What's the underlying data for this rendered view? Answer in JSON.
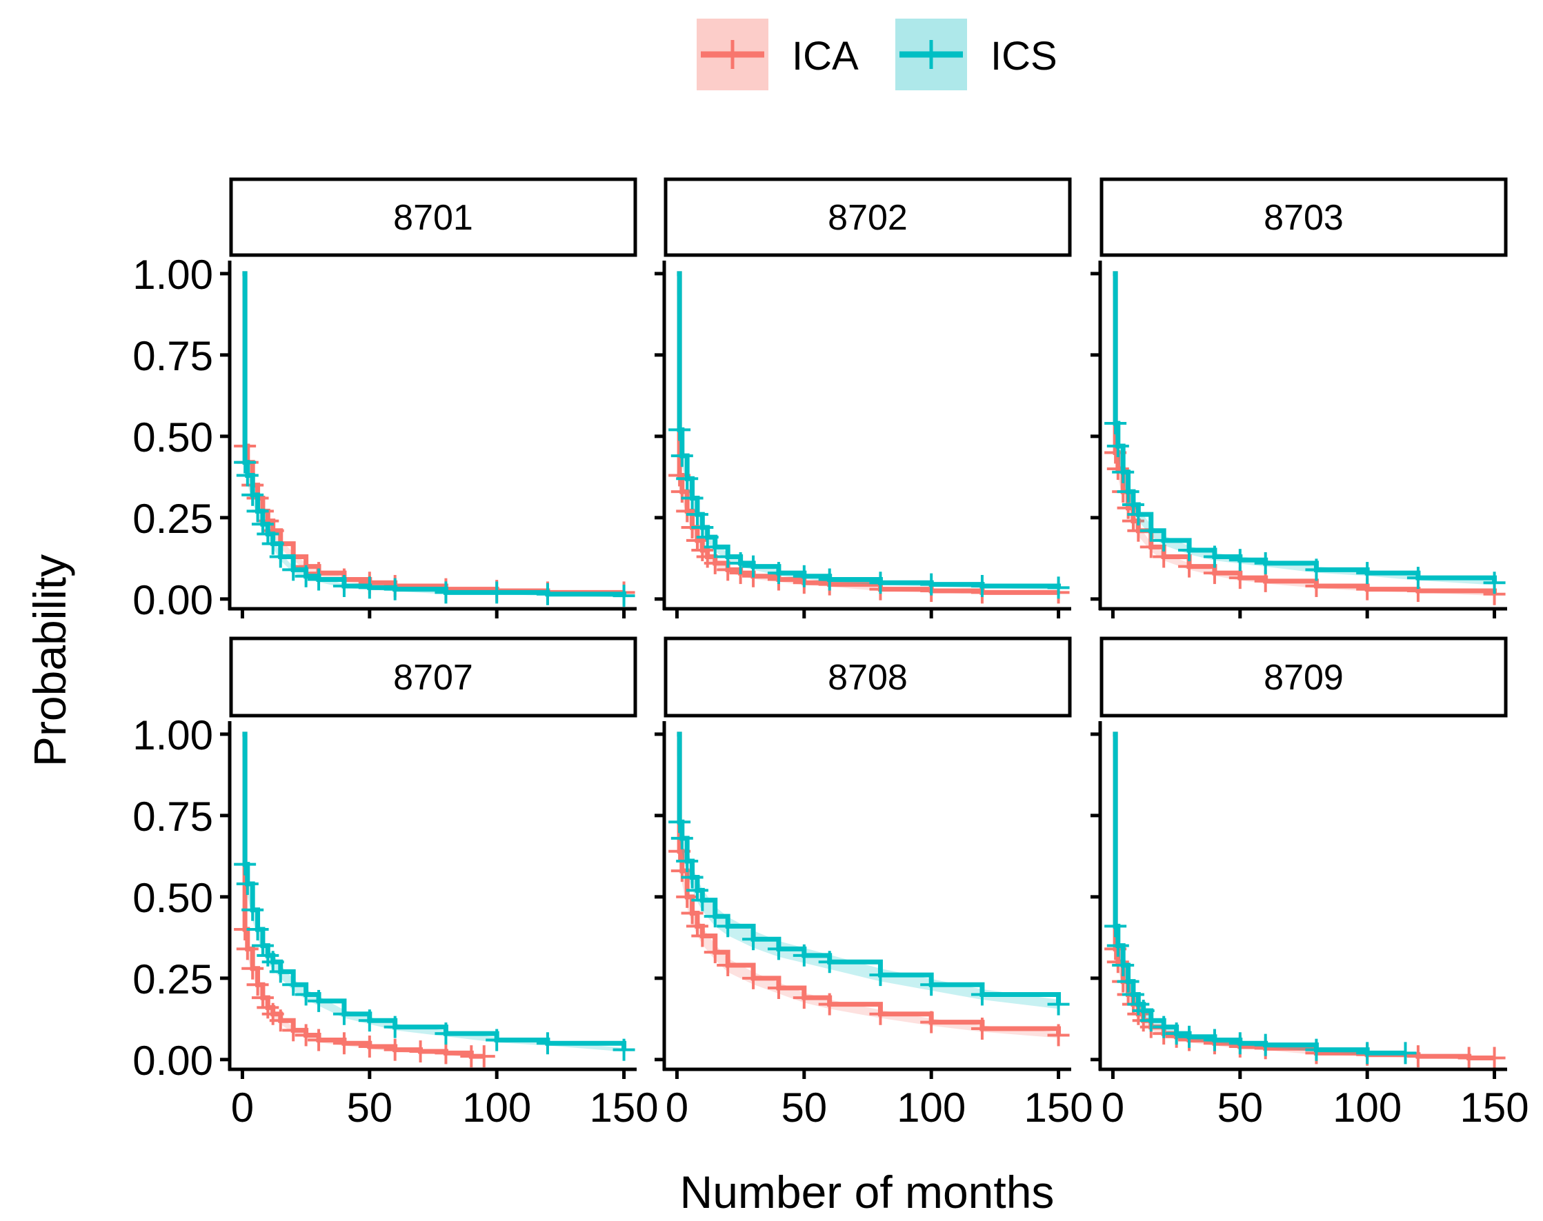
{
  "chart_data": {
    "type": "line",
    "subtype": "faceted survival curves (Kaplan-Meier with censor marks)",
    "xlabel": "Number of months",
    "ylabel": "Probability",
    "xlim": [
      -5,
      155
    ],
    "ylim": [
      -0.03,
      1.04
    ],
    "x_ticks": [
      0,
      50,
      100,
      150
    ],
    "x_tick_labels": [
      "0",
      "50",
      "100",
      "150"
    ],
    "y_ticks": [
      0,
      0.25,
      0.5,
      0.75,
      1.0
    ],
    "y_tick_labels": [
      "0.00",
      "0.25",
      "0.50",
      "0.75",
      "1.00"
    ],
    "grid": false,
    "legend": {
      "position": "top",
      "entries": [
        {
          "label": "ICA",
          "color": "#F8766D",
          "band_color": "#FCCDC9"
        },
        {
          "label": "ICS",
          "color": "#00BFC4",
          "band_color": "#AEE8EA"
        }
      ]
    },
    "panels": [
      {
        "title": "8701",
        "series": [
          {
            "name": "ICA",
            "color": "#F8766D",
            "x": [
              0,
              1,
              2,
              4,
              6,
              8,
              10,
              12,
              15,
              20,
              25,
              30,
              40,
              50,
              60,
              80,
              100,
              120,
              150
            ],
            "y": [
              1.0,
              0.47,
              0.42,
              0.35,
              0.31,
              0.27,
              0.24,
              0.21,
              0.17,
              0.13,
              0.1,
              0.08,
              0.06,
              0.05,
              0.04,
              0.03,
              0.025,
              0.02,
              0.02
            ]
          },
          {
            "name": "ICS",
            "color": "#00BFC4",
            "x": [
              0,
              1,
              2,
              4,
              6,
              8,
              10,
              12,
              15,
              20,
              25,
              30,
              40,
              50,
              60,
              80,
              100,
              120,
              150
            ],
            "y": [
              1.0,
              0.42,
              0.38,
              0.32,
              0.27,
              0.23,
              0.2,
              0.17,
              0.13,
              0.09,
              0.07,
              0.06,
              0.04,
              0.035,
              0.03,
              0.02,
              0.02,
              0.015,
              0.01
            ]
          }
        ]
      },
      {
        "title": "8702",
        "series": [
          {
            "name": "ICA",
            "color": "#F8766D",
            "x": [
              0,
              1,
              2,
              4,
              6,
              8,
              10,
              12,
              15,
              20,
              25,
              30,
              40,
              50,
              60,
              80,
              100,
              120,
              150
            ],
            "y": [
              1.0,
              0.38,
              0.33,
              0.27,
              0.22,
              0.18,
              0.15,
              0.13,
              0.11,
              0.09,
              0.08,
              0.07,
              0.06,
              0.05,
              0.045,
              0.03,
              0.025,
              0.02,
              0.02
            ]
          },
          {
            "name": "ICS",
            "color": "#00BFC4",
            "x": [
              0,
              1,
              2,
              4,
              6,
              8,
              10,
              12,
              15,
              20,
              25,
              30,
              40,
              50,
              60,
              80,
              100,
              120,
              150
            ],
            "y": [
              1.0,
              0.52,
              0.44,
              0.37,
              0.31,
              0.26,
              0.22,
              0.19,
              0.16,
              0.13,
              0.11,
              0.1,
              0.08,
              0.07,
              0.06,
              0.05,
              0.045,
              0.04,
              0.035
            ]
          }
        ]
      },
      {
        "title": "8703",
        "series": [
          {
            "name": "ICA",
            "color": "#F8766D",
            "x": [
              0,
              1,
              2,
              4,
              6,
              8,
              10,
              15,
              20,
              30,
              40,
              50,
              60,
              80,
              100,
              120,
              150
            ],
            "y": [
              1.0,
              0.45,
              0.4,
              0.33,
              0.28,
              0.24,
              0.21,
              0.16,
              0.13,
              0.1,
              0.08,
              0.065,
              0.055,
              0.04,
              0.03,
              0.025,
              0.015
            ]
          },
          {
            "name": "ICS",
            "color": "#00BFC4",
            "x": [
              0,
              1,
              2,
              4,
              6,
              8,
              10,
              15,
              20,
              30,
              40,
              50,
              60,
              80,
              100,
              120,
              150
            ],
            "y": [
              1.0,
              0.54,
              0.47,
              0.39,
              0.33,
              0.29,
              0.26,
              0.21,
              0.18,
              0.15,
              0.13,
              0.12,
              0.11,
              0.09,
              0.08,
              0.065,
              0.05
            ]
          }
        ]
      },
      {
        "title": "8707",
        "series": [
          {
            "name": "ICA",
            "color": "#F8766D",
            "x": [
              0,
              1,
              2,
              4,
              6,
              8,
              10,
              12,
              15,
              20,
              25,
              30,
              40,
              50,
              60,
              70,
              80,
              90,
              95
            ],
            "y": [
              1.0,
              0.4,
              0.34,
              0.28,
              0.23,
              0.19,
              0.16,
              0.14,
              0.12,
              0.09,
              0.075,
              0.06,
              0.05,
              0.04,
              0.03,
              0.025,
              0.02,
              0.01,
              0.01
            ]
          },
          {
            "name": "ICS",
            "color": "#00BFC4",
            "x": [
              0,
              1,
              2,
              4,
              6,
              8,
              10,
              12,
              15,
              20,
              25,
              30,
              40,
              50,
              60,
              80,
              100,
              120,
              150
            ],
            "y": [
              1.0,
              0.6,
              0.54,
              0.46,
              0.4,
              0.35,
              0.32,
              0.3,
              0.27,
              0.23,
              0.2,
              0.18,
              0.14,
              0.12,
              0.1,
              0.08,
              0.06,
              0.05,
              0.03
            ]
          }
        ]
      },
      {
        "title": "8708",
        "series": [
          {
            "name": "ICA",
            "color": "#F8766D",
            "x": [
              0,
              1,
              2,
              4,
              6,
              8,
              10,
              15,
              20,
              30,
              40,
              50,
              60,
              80,
              100,
              120,
              150
            ],
            "y": [
              1.0,
              0.64,
              0.58,
              0.5,
              0.45,
              0.41,
              0.38,
              0.33,
              0.29,
              0.25,
              0.22,
              0.19,
              0.17,
              0.14,
              0.115,
              0.095,
              0.075
            ]
          },
          {
            "name": "ICS",
            "color": "#00BFC4",
            "x": [
              0,
              1,
              2,
              4,
              6,
              8,
              10,
              15,
              20,
              30,
              40,
              50,
              60,
              80,
              100,
              120,
              150
            ],
            "y": [
              1.0,
              0.73,
              0.68,
              0.61,
              0.56,
              0.52,
              0.49,
              0.44,
              0.41,
              0.37,
              0.34,
              0.32,
              0.3,
              0.26,
              0.23,
              0.2,
              0.17
            ]
          }
        ]
      },
      {
        "title": "8709",
        "series": [
          {
            "name": "ICA",
            "color": "#F8766D",
            "x": [
              0,
              1,
              2,
              4,
              6,
              8,
              10,
              12,
              15,
              20,
              25,
              30,
              40,
              50,
              60,
              80,
              100,
              120,
              140,
              150
            ],
            "y": [
              1.0,
              0.34,
              0.3,
              0.24,
              0.2,
              0.17,
              0.14,
              0.12,
              0.1,
              0.08,
              0.07,
              0.06,
              0.05,
              0.04,
              0.035,
              0.02,
              0.015,
              0.01,
              0.005,
              0.005
            ]
          },
          {
            "name": "ICS",
            "color": "#00BFC4",
            "x": [
              0,
              1,
              2,
              4,
              6,
              8,
              10,
              12,
              15,
              20,
              25,
              30,
              40,
              50,
              60,
              80,
              100,
              115
            ],
            "y": [
              1.0,
              0.41,
              0.35,
              0.29,
              0.24,
              0.2,
              0.17,
              0.15,
              0.12,
              0.1,
              0.08,
              0.07,
              0.06,
              0.05,
              0.045,
              0.03,
              0.02,
              0.02
            ]
          }
        ]
      }
    ]
  }
}
